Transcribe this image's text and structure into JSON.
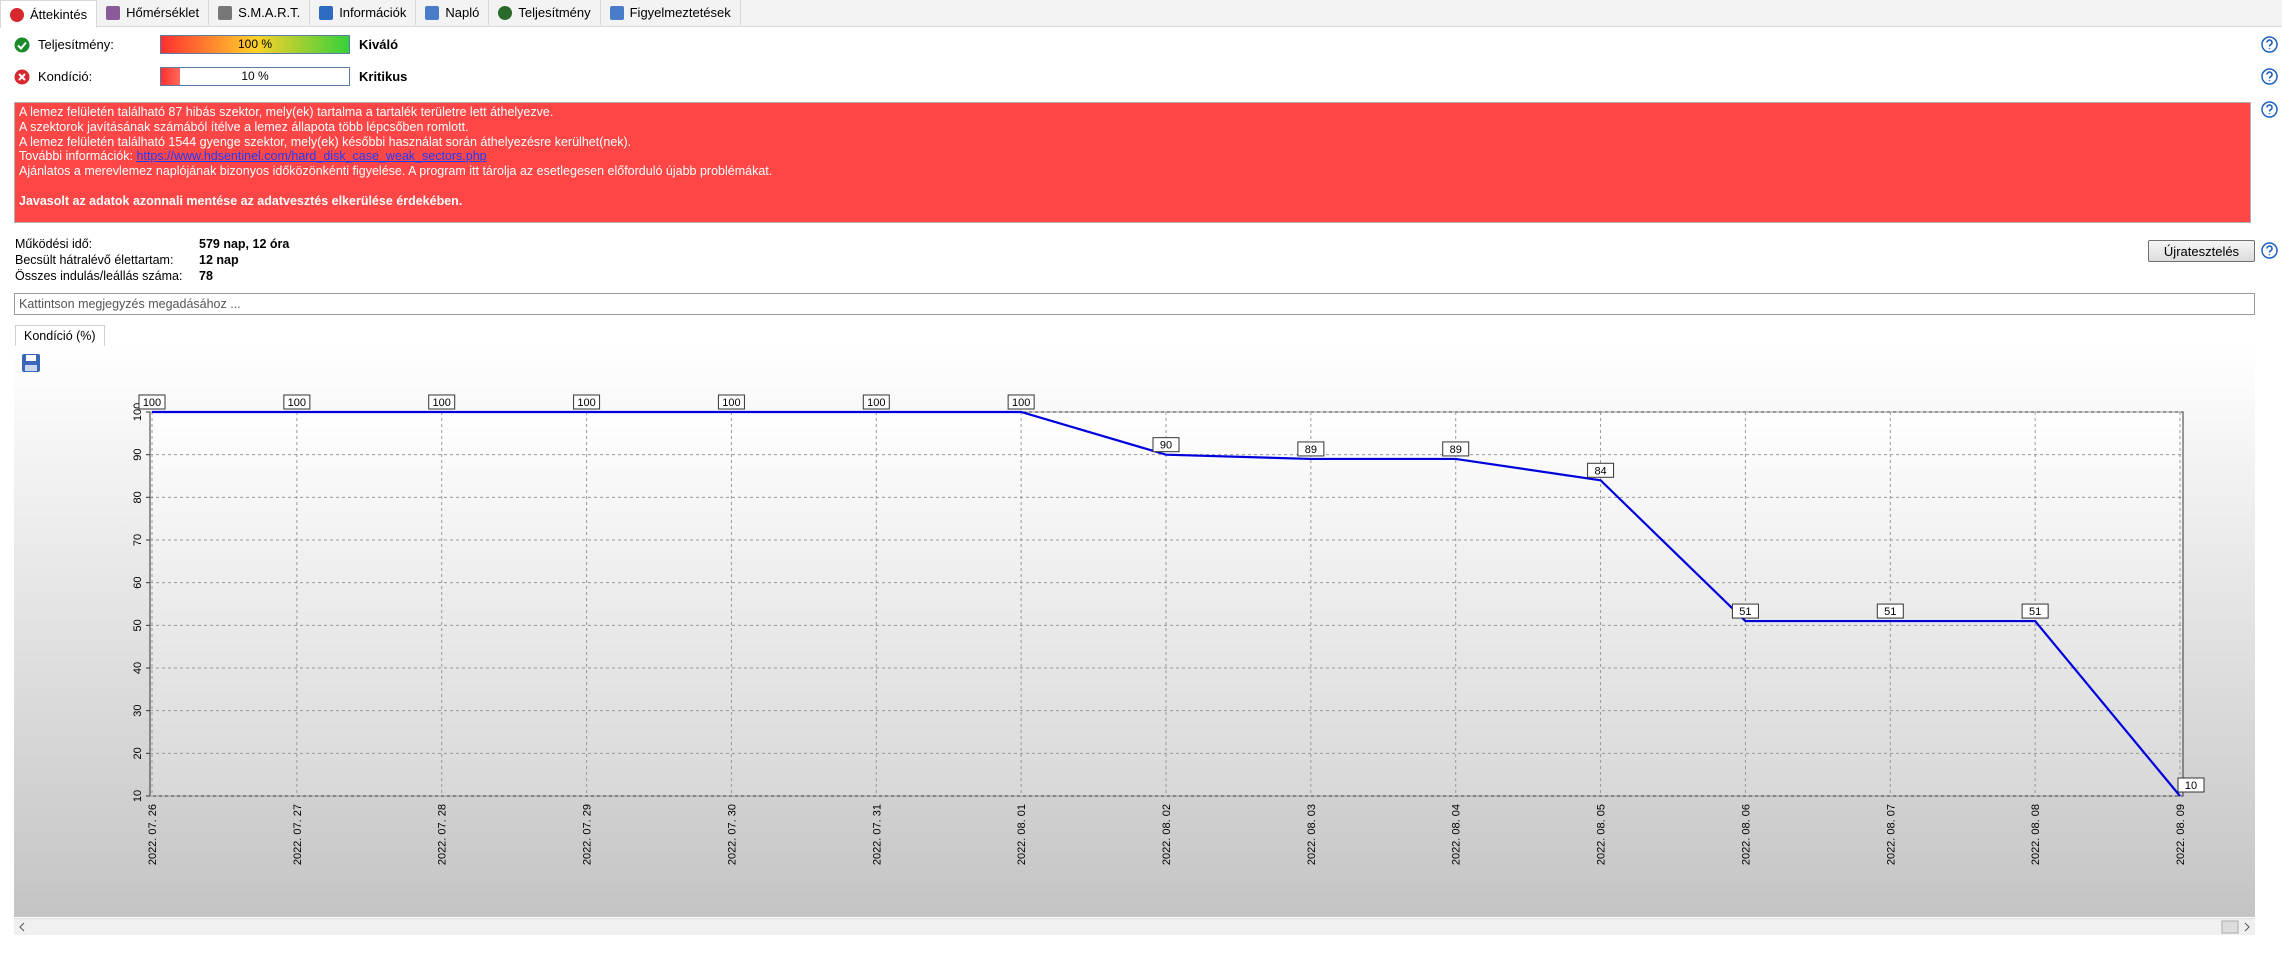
{
  "tabs": [
    "Áttekintés",
    "Hőmérséklet",
    "S.M.A.R.T.",
    "Információk",
    "Napló",
    "Teljesítmény",
    "Figyelmeztetések"
  ],
  "status": [
    {
      "label": "Teljesítmény:",
      "value": 100,
      "value_label": "100 %",
      "rating": "Kiváló"
    },
    {
      "label": "Kondíció:",
      "value": 10,
      "value_label": "10 %",
      "rating": "Kritikus"
    }
  ],
  "alert": {
    "lines": [
      "A lemez felületén található 87 hibás szektor, mely(ek) tartalma a tartalék területre lett áthelyezve.",
      "A szektorok javításának számából ítélve a lemez állapota több lépcsőben romlott.",
      "A lemez felületén található 1544 gyenge szektor, mely(ek) későbbi használat során áthelyezésre kerülhet(nek)."
    ],
    "link_prefix": "További információk:",
    "link": "https://www.hdsentinel.com/hard_disk_case_weak_sectors.php",
    "advice": "Ajánlatos a merevlemez naplójának bizonyos időközönkénti figyelése. A program itt tárolja az esetlegesen előforduló újabb problémákat.",
    "recommendation": "Javasolt az adatok azonnali mentése az adatvesztés elkerülése érdekében."
  },
  "info": [
    {
      "label": "Működési idő:",
      "value": "579 nap, 12 óra"
    },
    {
      "label": "Becsült hátralévő élettartam:",
      "value": "12 nap"
    },
    {
      "label": "Összes indulás/leállás száma:",
      "value": "78"
    }
  ],
  "retest_button": "Újratesztelés",
  "note_placeholder": "Kattintson megjegyzés megadásához ...",
  "chart_tab": "Kondíció  (%)",
  "chart_data": {
    "type": "line",
    "categories": [
      "2022. 07. 26",
      "2022. 07. 27",
      "2022. 07. 28",
      "2022. 07. 29",
      "2022. 07. 30",
      "2022. 07. 31",
      "2022. 08. 01",
      "2022. 08. 02",
      "2022. 08. 03",
      "2022. 08. 04",
      "2022. 08. 05",
      "2022. 08. 06",
      "2022. 08. 07",
      "2022. 08. 08",
      "2022. 08. 09"
    ],
    "values": [
      100,
      100,
      100,
      100,
      100,
      100,
      100,
      90,
      89,
      89,
      84,
      51,
      51,
      51,
      10
    ],
    "color": "#0000dd",
    "ylim": [
      10,
      100
    ],
    "yticks": [
      10,
      20,
      30,
      40,
      50,
      60,
      70,
      80,
      90,
      100
    ],
    "grid": true
  }
}
